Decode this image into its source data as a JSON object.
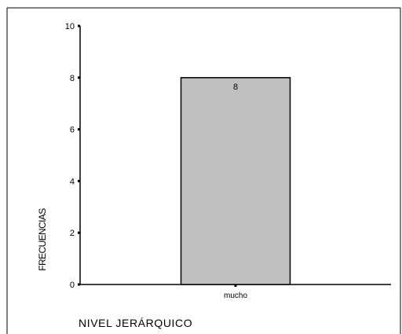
{
  "chart_data": {
    "type": "bar",
    "categories": [
      "mucho"
    ],
    "values": [
      8
    ],
    "data_labels": [
      "8"
    ],
    "ylim": [
      0,
      10
    ],
    "yticks": [
      0,
      2,
      4,
      6,
      8,
      10
    ],
    "xlabel": "NIVEL JERÁRQUICO",
    "ylabel": "FRECUENCIAS",
    "grid": false,
    "colors": {
      "bar_fill": "#c0c0c0",
      "bar_stroke": "#000000",
      "axis": "#000000"
    }
  }
}
